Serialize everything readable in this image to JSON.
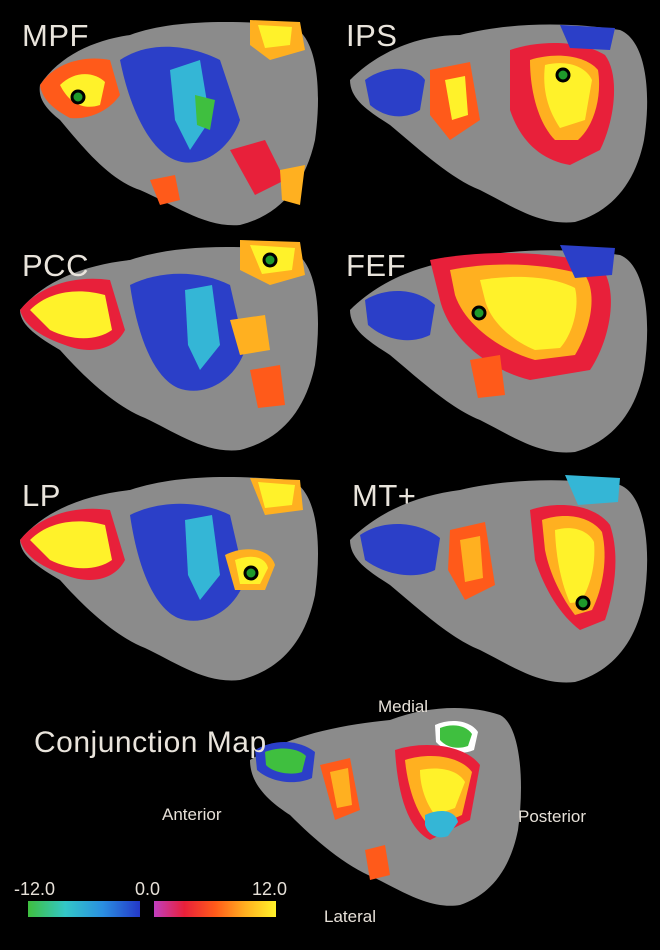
{
  "panels": [
    {
      "label": "MPF"
    },
    {
      "label": "IPS"
    },
    {
      "label": "PCC"
    },
    {
      "label": "FEF"
    },
    {
      "label": "LP"
    },
    {
      "label": "MT+"
    }
  ],
  "conjunction": {
    "title": "Conjunction Map",
    "directions": {
      "medial": "Medial",
      "anterior": "Anterior",
      "posterior": "Posterior",
      "lateral": "Lateral"
    }
  },
  "colorbar": {
    "min_label": "-12.0",
    "mid_label": "0.0",
    "max_label": "12.0",
    "negative_colors": [
      "#3fbf3f",
      "#33c7c7",
      "#2a8fe0",
      "#2438c8"
    ],
    "positive_colors": [
      "#c03ec0",
      "#e8203a",
      "#ff5a1a",
      "#ffb020",
      "#fff22a"
    ]
  },
  "colors": {
    "background": "#000000",
    "cortex": "#8b8b8b",
    "cortex_dark": "#5a5a5a",
    "seed_marker": "#1f9a2b"
  }
}
